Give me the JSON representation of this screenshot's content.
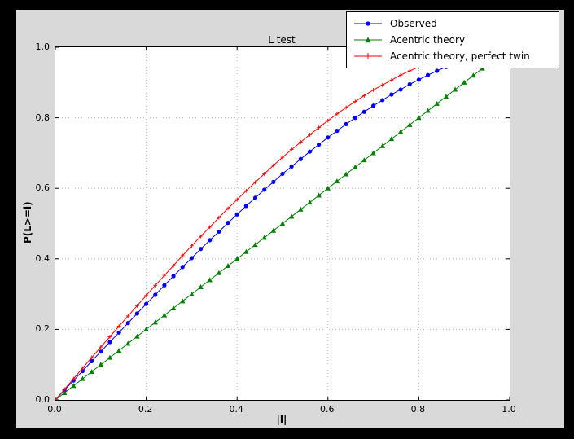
{
  "window": {
    "background": "#000000",
    "figure_background": "#d9d9d9",
    "plot_background": "#ffffff"
  },
  "chart_data": {
    "type": "line",
    "title": "L test",
    "xlabel": "|l|",
    "ylabel": "P(L>=l)",
    "xlim": [
      0.0,
      1.0
    ],
    "ylim": [
      0.0,
      1.0
    ],
    "xticks": [
      0.0,
      0.2,
      0.4,
      0.6,
      0.8,
      1.0
    ],
    "yticks": [
      0.0,
      0.2,
      0.4,
      0.6,
      0.8,
      1.0
    ],
    "xtick_labels": [
      "0.0",
      "0.2",
      "0.4",
      "0.6",
      "0.8",
      "1.0"
    ],
    "ytick_labels": [
      "0.0",
      "0.2",
      "0.4",
      "0.6",
      "0.8",
      "1.0"
    ],
    "grid": "dotted",
    "legend_position": "upper right",
    "series": [
      {
        "name": "Observed",
        "color": "#0000ff",
        "marker": "circle",
        "x": [
          0.0,
          0.02,
          0.04,
          0.06,
          0.08,
          0.1,
          0.12,
          0.14,
          0.16,
          0.18,
          0.2,
          0.22,
          0.24,
          0.26,
          0.28,
          0.3,
          0.32,
          0.34,
          0.36,
          0.38,
          0.4,
          0.42,
          0.44,
          0.46,
          0.48,
          0.5,
          0.52,
          0.54,
          0.56,
          0.58,
          0.6,
          0.62,
          0.64,
          0.66,
          0.68,
          0.7,
          0.72,
          0.74,
          0.76,
          0.78,
          0.8,
          0.82,
          0.84,
          0.86
        ],
        "y": [
          0.0,
          0.028,
          0.055,
          0.082,
          0.11,
          0.137,
          0.164,
          0.191,
          0.218,
          0.245,
          0.272,
          0.298,
          0.325,
          0.351,
          0.377,
          0.402,
          0.428,
          0.453,
          0.477,
          0.502,
          0.526,
          0.55,
          0.573,
          0.596,
          0.618,
          0.641,
          0.662,
          0.683,
          0.704,
          0.724,
          0.744,
          0.763,
          0.782,
          0.8,
          0.817,
          0.834,
          0.85,
          0.866,
          0.88,
          0.895,
          0.908,
          0.921,
          0.933,
          0.944
        ]
      },
      {
        "name": "Acentric theory",
        "color": "#008000",
        "marker": "triangle",
        "x": [
          0.0,
          0.02,
          0.04,
          0.06,
          0.08,
          0.1,
          0.12,
          0.14,
          0.16,
          0.18,
          0.2,
          0.22,
          0.24,
          0.26,
          0.28,
          0.3,
          0.32,
          0.34,
          0.36,
          0.38,
          0.4,
          0.42,
          0.44,
          0.46,
          0.48,
          0.5,
          0.52,
          0.54,
          0.56,
          0.58,
          0.6,
          0.62,
          0.64,
          0.66,
          0.68,
          0.7,
          0.72,
          0.74,
          0.76,
          0.78,
          0.8,
          0.82,
          0.84,
          0.86,
          0.88,
          0.9,
          0.92,
          0.94,
          0.96
        ],
        "y": [
          0.0,
          0.02,
          0.04,
          0.06,
          0.08,
          0.1,
          0.12,
          0.14,
          0.16,
          0.18,
          0.2,
          0.22,
          0.24,
          0.26,
          0.28,
          0.3,
          0.32,
          0.34,
          0.36,
          0.38,
          0.4,
          0.42,
          0.44,
          0.46,
          0.48,
          0.5,
          0.52,
          0.54,
          0.56,
          0.58,
          0.6,
          0.62,
          0.64,
          0.66,
          0.68,
          0.7,
          0.72,
          0.74,
          0.76,
          0.78,
          0.8,
          0.82,
          0.84,
          0.86,
          0.88,
          0.9,
          0.92,
          0.94,
          0.96
        ]
      },
      {
        "name": "Acentric theory, perfect twin",
        "color": "#ff0000",
        "marker": "plus",
        "x": [
          0.0,
          0.02,
          0.04,
          0.06,
          0.08,
          0.1,
          0.12,
          0.14,
          0.16,
          0.18,
          0.2,
          0.22,
          0.24,
          0.26,
          0.28,
          0.3,
          0.32,
          0.34,
          0.36,
          0.38,
          0.4,
          0.42,
          0.44,
          0.46,
          0.48,
          0.5,
          0.52,
          0.54,
          0.56,
          0.58,
          0.6,
          0.62,
          0.64,
          0.66,
          0.68,
          0.7,
          0.72,
          0.74,
          0.76,
          0.78,
          0.8,
          0.82,
          0.84
        ],
        "y": [
          0.0,
          0.03,
          0.06,
          0.09,
          0.12,
          0.15,
          0.179,
          0.209,
          0.238,
          0.267,
          0.296,
          0.325,
          0.353,
          0.381,
          0.409,
          0.437,
          0.464,
          0.49,
          0.517,
          0.543,
          0.568,
          0.593,
          0.617,
          0.641,
          0.665,
          0.688,
          0.71,
          0.731,
          0.752,
          0.772,
          0.792,
          0.811,
          0.829,
          0.846,
          0.863,
          0.879,
          0.893,
          0.907,
          0.921,
          0.933,
          0.944,
          0.954,
          0.964
        ]
      }
    ]
  }
}
